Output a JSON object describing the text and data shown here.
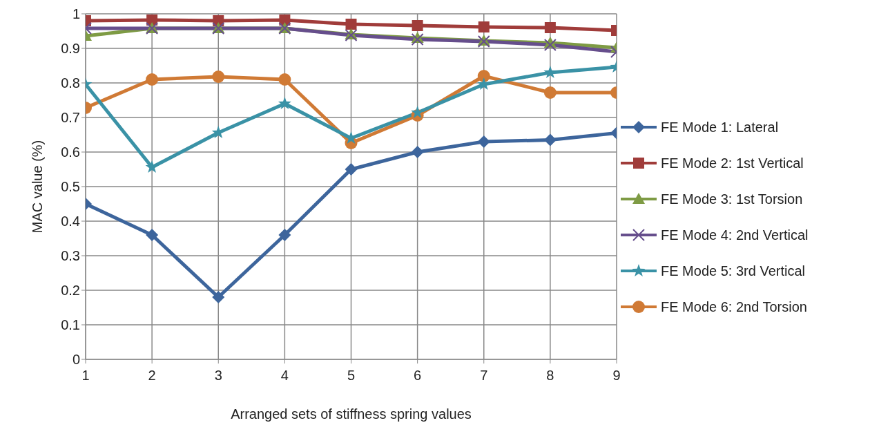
{
  "chart_data": {
    "type": "line",
    "xlabel": "Arranged sets of stiffness spring values",
    "ylabel": "MAC  value (%)",
    "x": [
      1,
      2,
      3,
      4,
      5,
      6,
      7,
      8,
      9
    ],
    "xlim": [
      1,
      9
    ],
    "xticks": [
      1,
      2,
      3,
      4,
      5,
      6,
      7,
      8,
      9
    ],
    "ylim": [
      0,
      1
    ],
    "yticks": [
      0,
      0.1,
      0.2,
      0.3,
      0.4,
      0.5,
      0.6,
      0.7,
      0.8,
      0.9,
      1
    ],
    "grid": true,
    "legend": "right",
    "series": [
      {
        "name": "FE Mode 1: Lateral",
        "color": "#3d659c",
        "marker": "diamond",
        "values": [
          0.45,
          0.36,
          0.18,
          0.36,
          0.55,
          0.6,
          0.63,
          0.635,
          0.655
        ]
      },
      {
        "name": "FE Mode 2: 1st Vertical",
        "color": "#a03c3a",
        "marker": "square",
        "values": [
          0.98,
          0.982,
          0.98,
          0.982,
          0.97,
          0.966,
          0.962,
          0.96,
          0.952
        ]
      },
      {
        "name": "FE Mode 3: 1st Torsion",
        "color": "#7e9b44",
        "marker": "triangle",
        "values": [
          0.936,
          0.958,
          0.958,
          0.958,
          0.94,
          0.93,
          0.922,
          0.916,
          0.902
        ]
      },
      {
        "name": "FE Mode 4: 2nd Vertical",
        "color": "#664e8c",
        "marker": "cross",
        "values": [
          0.958,
          0.958,
          0.958,
          0.958,
          0.938,
          0.926,
          0.92,
          0.91,
          0.89
        ]
      },
      {
        "name": "FE Mode 5: 3rd Vertical",
        "color": "#3a92a6",
        "marker": "star",
        "values": [
          0.796,
          0.556,
          0.656,
          0.74,
          0.64,
          0.714,
          0.796,
          0.83,
          0.846
        ]
      },
      {
        "name": "FE Mode 6: 2nd Torsion",
        "color": "#d07a35",
        "marker": "circle",
        "values": [
          0.728,
          0.81,
          0.818,
          0.81,
          0.626,
          0.706,
          0.82,
          0.772,
          0.772
        ]
      }
    ]
  }
}
